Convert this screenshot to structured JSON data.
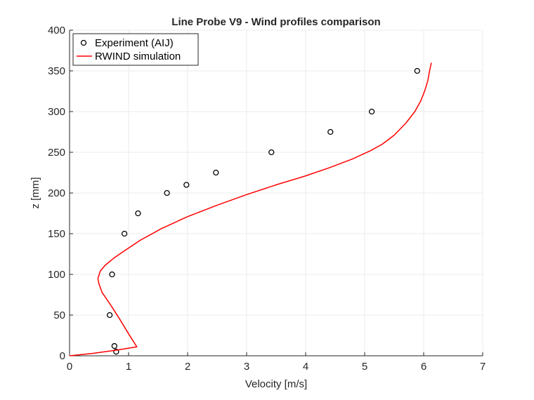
{
  "chart_data": {
    "type": "line",
    "title": "Line Probe V9 - Wind profiles comparison",
    "xlabel": "Velocity [m/s]",
    "ylabel": "z [mm]",
    "xlim": [
      0,
      7
    ],
    "ylim": [
      0,
      400
    ],
    "xticks": [
      0,
      1,
      2,
      3,
      4,
      5,
      6,
      7
    ],
    "yticks": [
      0,
      50,
      100,
      150,
      200,
      250,
      300,
      350,
      400
    ],
    "grid": true,
    "legend_position": "top-left",
    "series": [
      {
        "name": "Experiment (AIJ)",
        "style": "markers",
        "marker": "circle",
        "color": "#000000",
        "x": [
          0.79,
          0.76,
          0.68,
          0.72,
          0.93,
          1.16,
          1.65,
          1.98,
          2.48,
          3.42,
          4.42,
          5.12,
          5.89
        ],
        "y": [
          5,
          12,
          50,
          100,
          150,
          175,
          200,
          210,
          225,
          250,
          275,
          300,
          350
        ]
      },
      {
        "name": "RWIND simulation",
        "style": "line",
        "color": "#ff0000",
        "x": [
          0,
          0.4,
          0.8,
          1.14,
          1.0,
          0.85,
          0.7,
          0.55,
          0.5,
          0.48,
          0.52,
          0.6,
          0.75,
          0.95,
          1.2,
          1.55,
          2.0,
          2.5,
          3.0,
          3.5,
          4.0,
          4.4,
          4.8,
          5.1,
          5.3,
          5.5,
          5.7,
          5.85,
          5.95,
          6.02,
          6.07,
          6.1,
          6.13
        ],
        "y": [
          0,
          3,
          7,
          11,
          27,
          45,
          62,
          78,
          88,
          95,
          104,
          111,
          120,
          130,
          142,
          156,
          171,
          185,
          198,
          210,
          221,
          231,
          242,
          252,
          260,
          271,
          286,
          300,
          313,
          326,
          338,
          350,
          360
        ]
      }
    ]
  }
}
